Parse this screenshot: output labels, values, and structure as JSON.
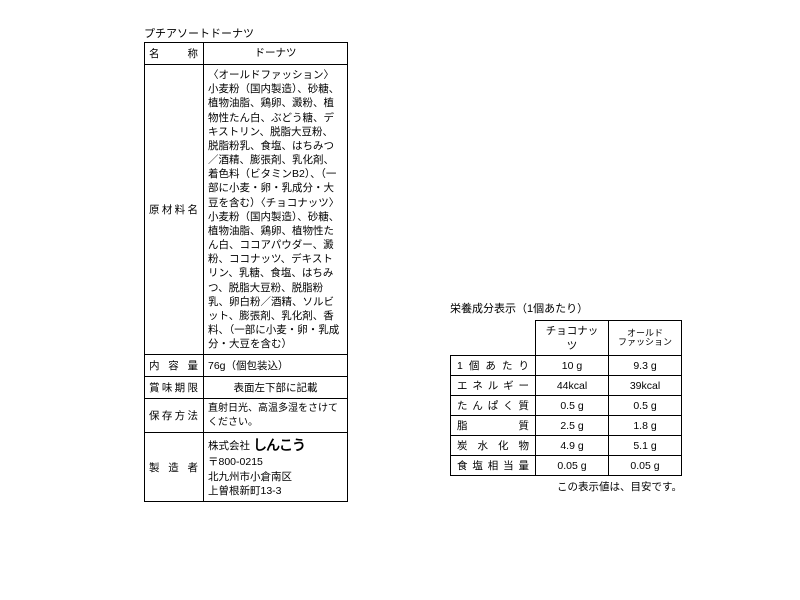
{
  "product_title": "プチアソートドーナツ",
  "spec_table": {
    "rows": [
      {
        "label": "名　称",
        "value": "ドーナツ"
      },
      {
        "label": "原材料名",
        "value": "〈オールドファッション〉小麦粉（国内製造）、砂糖、植物油脂、鶏卵、澱粉、植物性たん白、ぶどう糖、デキストリン、脱脂大豆粉、脱脂粉乳、食塩、はちみつ／酒精、膨張剤、乳化剤、着色料（ビタミンB2）、（一部に小麦・卵・乳成分・大豆を含む）〈チョコナッツ〉小麦粉（国内製造）、砂糖、植物油脂、鶏卵、植物性たん白、ココアパウダー、澱粉、ココナッツ、デキストリン、乳糖、食塩、はちみつ、脱脂大豆粉、脱脂粉乳、卵白粉／酒精、ソルビット、膨張剤、乳化剤、香料、（一部に小麦・卵・乳成分・大豆を含む）"
      },
      {
        "label": "内 容 量",
        "value": "76g（個包装込）"
      },
      {
        "label": "賞味期限",
        "value": "表面左下部に記載"
      },
      {
        "label": "保存方法",
        "value": "直射日光、高温多湿をさけてください。"
      }
    ],
    "manufacturer": {
      "label": "製 造 者",
      "company_prefix": "株式会社",
      "company_logo": "しんこう",
      "postal": "〒800-0215",
      "address1": "北九州市小倉南区",
      "address2": "上曽根新町13-3"
    }
  },
  "nutrition": {
    "title": "栄養成分表示（1個あたり）",
    "col_headers": [
      "",
      "チョコナッツ",
      "オールド\nファッション"
    ],
    "rows": [
      {
        "label": "1個あたり",
        "v1": "10 g",
        "v2": "9.3 g"
      },
      {
        "label": "エネルギー",
        "v1": "44kcal",
        "v2": "39kcal"
      },
      {
        "label": "たんぱく質",
        "v1": "0.5 g",
        "v2": "0.5 g"
      },
      {
        "label": "脂　　質",
        "v1": "2.5 g",
        "v2": "1.8 g"
      },
      {
        "label": "炭水化物",
        "v1": "4.9 g",
        "v2": "5.1 g"
      },
      {
        "label": "食塩相当量",
        "v1": "0.05 g",
        "v2": "0.05 g"
      }
    ],
    "note": "この表示値は、目安です。"
  }
}
